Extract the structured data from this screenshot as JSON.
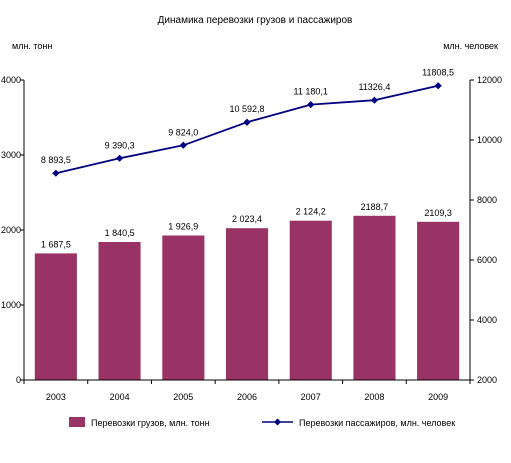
{
  "chart_data": {
    "type": "bar+line",
    "title": "Динамика перевозки грузов и пассажиров",
    "left_axis_unit": "млн. тонн",
    "right_axis_unit": "млн. человек",
    "categories": [
      "2003",
      "2004",
      "2005",
      "2006",
      "2007",
      "2008",
      "2009"
    ],
    "left_ylim": [
      0,
      4000
    ],
    "left_ticks": [
      "0",
      "1000",
      "2000",
      "3000",
      "4000"
    ],
    "right_ylim": [
      2000,
      12000
    ],
    "right_ticks": [
      "2000",
      "4000",
      "6000",
      "8000",
      "10000",
      "12000"
    ],
    "grid": false,
    "legend_position": "bottom",
    "series": [
      {
        "name": "Перевозки грузов, млн. тонн",
        "kind": "bar",
        "axis": "left",
        "color": "#993366",
        "values": [
          1687.5,
          1840.5,
          1926.9,
          2023.4,
          2124.2,
          2188.7,
          2109.3
        ],
        "labels": [
          "1 687,5",
          "1 840,5",
          "1 926,9",
          "2 023,4",
          "2 124,2",
          "2188,7",
          "2109,3"
        ]
      },
      {
        "name": "Перевозки пассажиров, млн. человек",
        "kind": "line",
        "axis": "right",
        "color": "#000080",
        "values": [
          8893.5,
          9390.3,
          9824.0,
          10592.8,
          11180.1,
          11326.4,
          11808.5
        ],
        "labels": [
          "8 893,5",
          "9 390,3",
          "9 824,0",
          "10 592,8",
          "11 180,1",
          "11326,4",
          "11808,5"
        ]
      }
    ]
  }
}
